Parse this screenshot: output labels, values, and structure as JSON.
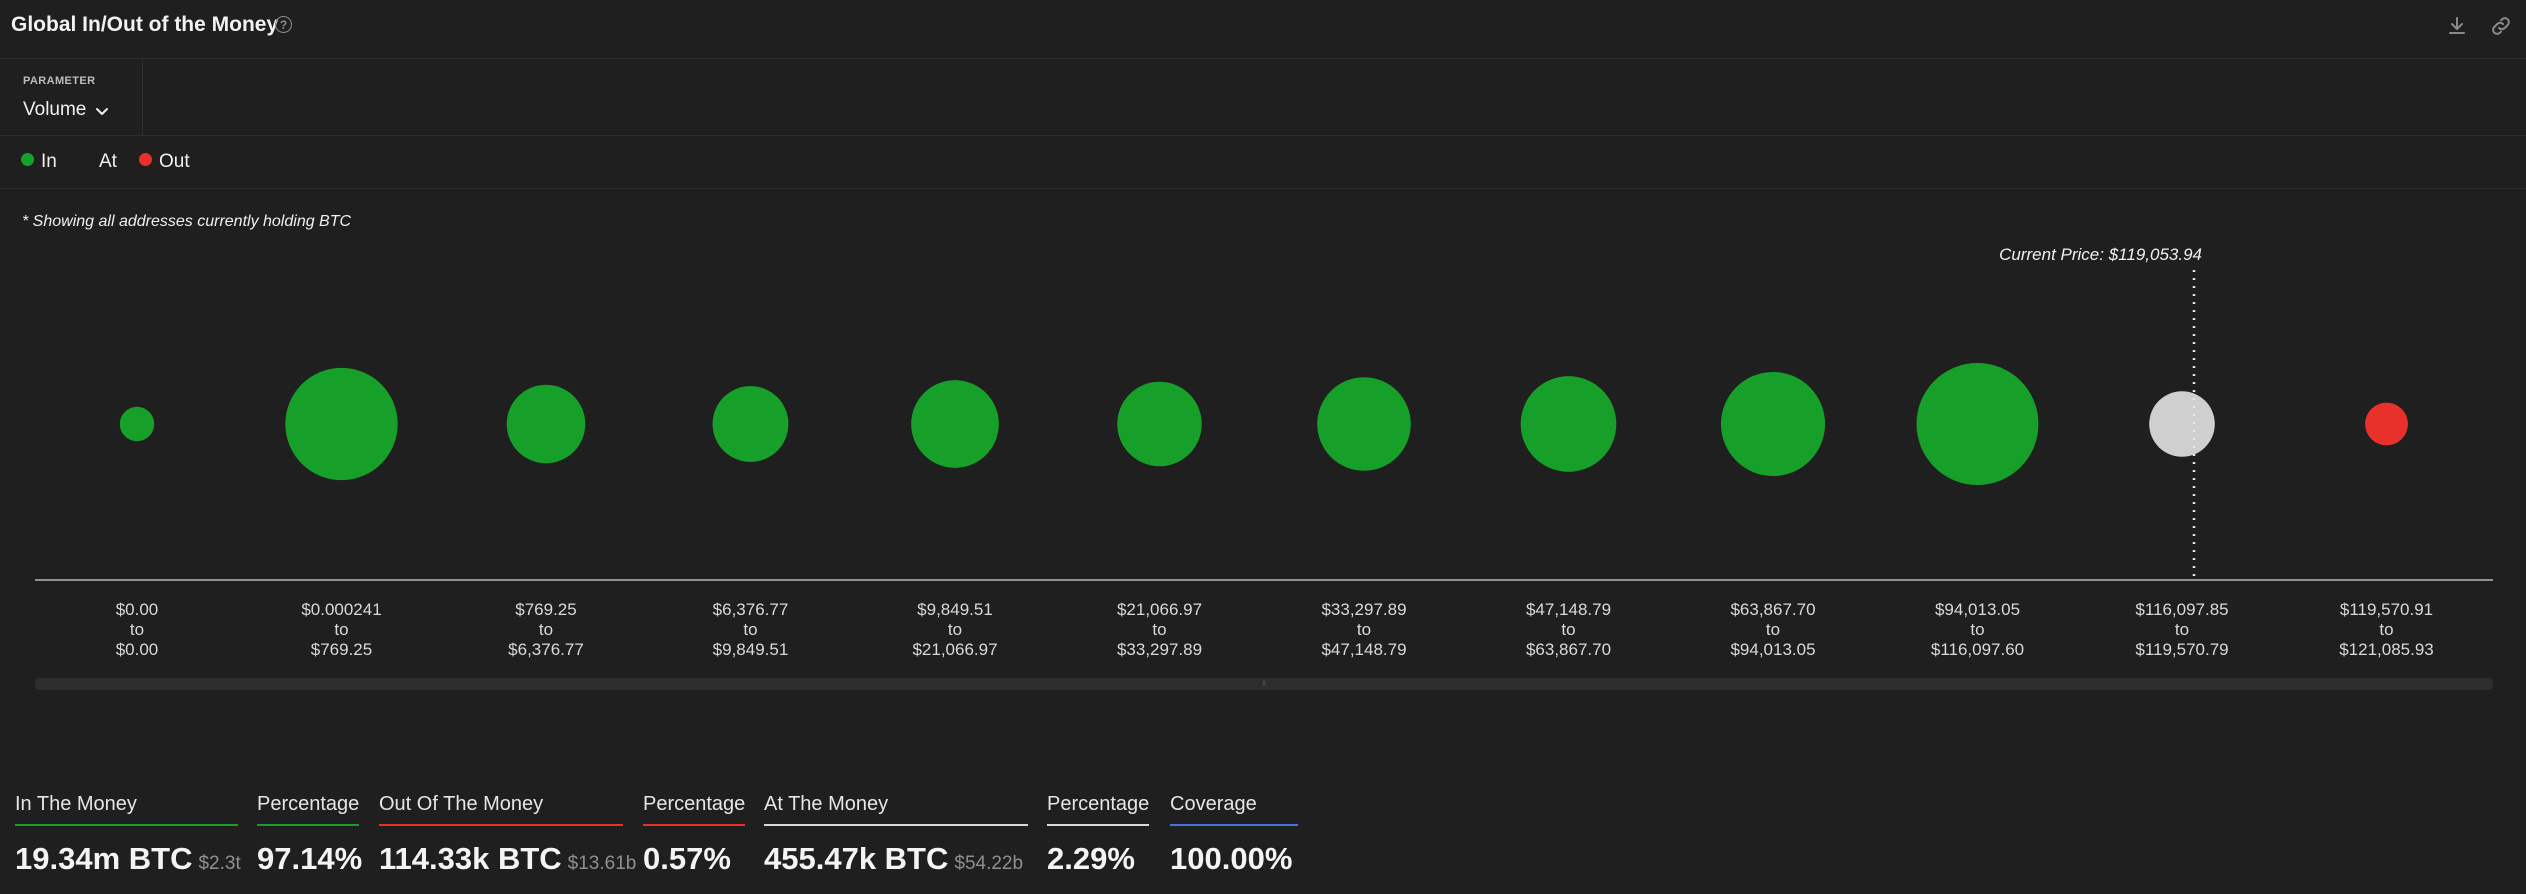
{
  "header": {
    "title": "Global In/Out of the Money",
    "help_icon": "question-circle-icon",
    "download_icon": "download-icon",
    "link_icon": "link-icon"
  },
  "parameter": {
    "label": "PARAMETER",
    "value": "Volume"
  },
  "legend": [
    {
      "label": "In",
      "color": "#16a02a"
    },
    {
      "label": "At",
      "color": ""
    },
    {
      "label": "Out",
      "color": "#e9312c"
    }
  ],
  "note": "* Showing all addresses currently holding BTC",
  "current_price_label": "Current Price: $119,053.94",
  "colors": {
    "in": "#16a02a",
    "at": "#cfcfcf",
    "out": "#e9312c",
    "background": "#1f1f1f",
    "coverage": "#4a6fe3"
  },
  "chart_data": {
    "type": "scatter",
    "title": "Global In/Out of the Money",
    "current_price": 119053.94,
    "bins": [
      {
        "from": "$0.00",
        "to": "$0.00",
        "status": "in",
        "relative_volume": 0.02
      },
      {
        "from": "$0.000241",
        "to": "$769.25",
        "status": "in",
        "relative_volume": 0.82
      },
      {
        "from": "$769.25",
        "to": "$6,376.77",
        "status": "in",
        "relative_volume": 0.33
      },
      {
        "from": "$6,376.77",
        "to": "$9,849.51",
        "status": "in",
        "relative_volume": 0.3
      },
      {
        "from": "$9,849.51",
        "to": "$21,066.97",
        "status": "in",
        "relative_volume": 0.44
      },
      {
        "from": "$21,066.97",
        "to": "$33,297.89",
        "status": "in",
        "relative_volume": 0.4
      },
      {
        "from": "$33,297.89",
        "to": "$47,148.79",
        "status": "in",
        "relative_volume": 0.52
      },
      {
        "from": "$47,148.79",
        "to": "$63,867.70",
        "status": "in",
        "relative_volume": 0.55
      },
      {
        "from": "$63,867.70",
        "to": "$94,013.05",
        "status": "in",
        "relative_volume": 0.68
      },
      {
        "from": "$94,013.05",
        "to": "$116,097.60",
        "status": "in",
        "relative_volume": 1.0
      },
      {
        "from": "$116,097.85",
        "to": "$119,570.79",
        "status": "at",
        "relative_volume": 0.2
      },
      {
        "from": "$119,570.91",
        "to": "$121,085.93",
        "status": "out",
        "relative_volume": 0.05
      }
    ]
  },
  "stats": [
    {
      "label": "In The Money",
      "value": "19.34m BTC",
      "sub": "$2.3t",
      "underline": "#16a02a"
    },
    {
      "label": "Percentage",
      "value": "97.14%",
      "sub": "",
      "underline": "#16a02a"
    },
    {
      "label": "Out Of The Money",
      "value": "114.33k BTC",
      "sub": "$13.61b",
      "underline": "#e9312c"
    },
    {
      "label": "Percentage",
      "value": "0.57%",
      "sub": "",
      "underline": "#e9312c"
    },
    {
      "label": "At The Money",
      "value": "455.47k BTC",
      "sub": "$54.22b",
      "underline": "#d9d9d9"
    },
    {
      "label": "Percentage",
      "value": "2.29%",
      "sub": "",
      "underline": "#d9d9d9"
    },
    {
      "label": "Coverage",
      "value": "100.00%",
      "sub": "",
      "underline": "#4a6fe3"
    }
  ]
}
